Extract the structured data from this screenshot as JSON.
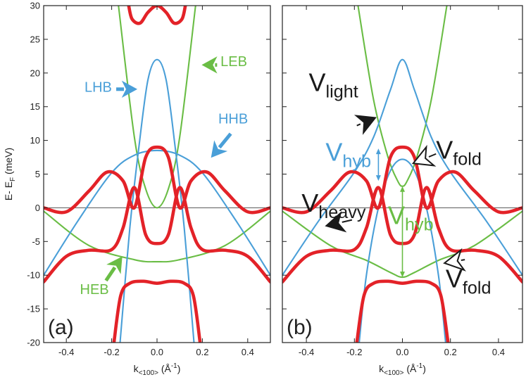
{
  "chart_data": [
    {
      "id": "a",
      "type": "line",
      "panel_label": "(a)",
      "xlabel": "k",
      "xlabel_sub": "<100>",
      "xlabel_unit": " (Å",
      "xlabel_unit_sup": "-1",
      "xlabel_unit_close": ")",
      "ylabel": "E- E",
      "ylabel_sub": "F",
      "ylabel_unit": " (meV)",
      "xlim": [
        -0.5,
        0.5
      ],
      "ylim": [
        -20,
        30
      ],
      "xticks": [
        -0.4,
        -0.2,
        0.0,
        0.2,
        0.4
      ],
      "xtick_labels": [
        "-0.4",
        "-0.2",
        "0.0",
        "0.2",
        "0.4"
      ],
      "yticks": [
        -20,
        -15,
        -10,
        -5,
        0,
        5,
        10,
        15,
        20,
        25,
        30
      ],
      "ytick_labels": [
        "-20",
        "-15",
        "-10",
        "-5",
        "0",
        "5",
        "10",
        "15",
        "20",
        "25",
        "30"
      ],
      "zero_line": true,
      "colors": {
        "blue": "#4a9fd8",
        "green": "#6abd45",
        "red": "#e32228",
        "black": "#1a1a1a"
      },
      "series": [
        {
          "color": "green",
          "x": [
            -0.17,
            -0.1,
            -0.05,
            0.0,
            0.05,
            0.1,
            0.17
          ],
          "y": [
            30.0,
            10.5,
            2.8,
            0.0,
            2.8,
            10.5,
            30.0
          ]
        },
        {
          "color": "green",
          "x": [
            -0.5,
            -0.3,
            -0.1,
            0.0,
            0.1,
            0.3,
            0.5
          ],
          "y": [
            -0.5,
            -5.6,
            -7.7,
            -8.0,
            -7.7,
            -5.6,
            -0.5
          ]
        },
        {
          "color": "blue",
          "x": [
            -0.5,
            -0.35,
            -0.2,
            -0.1,
            0.0,
            0.1,
            0.2,
            0.35,
            0.5
          ],
          "y": [
            -10.0,
            -2.0,
            5.2,
            7.8,
            8.5,
            7.8,
            5.2,
            -2.0,
            -10.0
          ]
        },
        {
          "color": "blue",
          "x": [
            -0.163,
            -0.12,
            -0.08,
            -0.04,
            0.0,
            0.04,
            0.08,
            0.12,
            0.163
          ],
          "y": [
            -20.0,
            -3.0,
            9.0,
            19.0,
            22.0,
            19.0,
            9.0,
            -3.0,
            -20.0
          ]
        },
        {
          "color": "red",
          "x": [
            -0.5,
            -0.4,
            -0.3,
            -0.22,
            -0.15,
            -0.1,
            -0.05,
            0.0,
            0.05,
            0.1,
            0.15,
            0.22,
            0.3,
            0.4,
            0.5
          ],
          "y": [
            0.0,
            -0.6,
            2.5,
            5.3,
            4.0,
            0.0,
            7.5,
            9.0,
            7.5,
            0.0,
            4.0,
            5.3,
            2.5,
            -0.6,
            0.0
          ]
        },
        {
          "color": "red",
          "x": [
            -0.5,
            -0.4,
            -0.3,
            -0.2,
            -0.15,
            -0.1,
            -0.05,
            0.0,
            0.05,
            0.1,
            0.15,
            0.2,
            0.3,
            0.4,
            0.5
          ],
          "y": [
            -11.0,
            -7.2,
            -6.3,
            -6.2,
            -3.0,
            3.0,
            -4.0,
            -5.3,
            -4.0,
            3.0,
            -3.0,
            -6.2,
            -6.3,
            -7.2,
            -11.0
          ]
        },
        {
          "color": "red",
          "x": [
            -0.19,
            -0.16,
            -0.12,
            -0.06,
            0.0,
            0.06,
            0.12,
            0.16,
            0.19
          ],
          "y": [
            -20.0,
            -13.0,
            -11.2,
            -10.9,
            -11.2,
            -10.9,
            -11.2,
            -13.0,
            -20.0
          ]
        },
        {
          "color": "red",
          "x": [
            -0.125,
            -0.11,
            -0.075,
            -0.04,
            0.0,
            0.04,
            0.075,
            0.11,
            0.125
          ],
          "y": [
            30.0,
            28.0,
            27.4,
            29.0,
            30.0,
            29.0,
            27.4,
            28.0,
            30.0
          ]
        }
      ],
      "annotations": [
        {
          "text": "LEB",
          "color": "green",
          "size": 20,
          "x": 0.28,
          "y": 21.0,
          "arrow": {
            "from": [
              0.265,
              21.2
            ],
            "to": [
              0.2,
              21.2
            ],
            "color": "green"
          }
        },
        {
          "text": "LHB",
          "color": "blue",
          "size": 20,
          "x": -0.32,
          "y": 17.2,
          "arrow": {
            "from": [
              -0.18,
              17.6
            ],
            "to": [
              -0.09,
              17.6
            ],
            "color": "blue"
          }
        },
        {
          "text": "HHB",
          "color": "blue",
          "size": 20,
          "x": 0.27,
          "y": 12.5,
          "arrow": {
            "from": [
              0.325,
              11.0
            ],
            "to": [
              0.24,
              7.5
            ],
            "color": "blue"
          }
        },
        {
          "text": "HEB",
          "color": "green",
          "size": 20,
          "x": -0.34,
          "y": -12.8,
          "arrow": {
            "from": [
              -0.225,
              -10.8
            ],
            "to": [
              -0.155,
              -7.3
            ],
            "color": "green"
          }
        }
      ]
    },
    {
      "id": "b",
      "type": "line",
      "panel_label": "(b)",
      "xlabel": "k",
      "xlabel_sub": "<100>",
      "xlabel_unit": " (Å",
      "xlabel_unit_sup": "-1",
      "xlabel_unit_close": ")",
      "xlim": [
        -0.5,
        0.5
      ],
      "ylim": [
        -20,
        30
      ],
      "xticks": [
        -0.4,
        -0.2,
        0.0,
        0.2,
        0.4
      ],
      "xtick_labels": [
        "-0.4",
        "-0.2",
        "0.0",
        "0.2",
        "0.4"
      ],
      "yticks": [
        -20,
        -15,
        -10,
        -5,
        0,
        5,
        10,
        15,
        20,
        25,
        30
      ],
      "zero_line": true,
      "colors": {
        "blue": "#4a9fd8",
        "green": "#6abd45",
        "red": "#e32228",
        "black": "#1a1a1a"
      },
      "series": [
        {
          "color": "green",
          "x": [
            -0.185,
            -0.12,
            -0.06,
            -0.02,
            0.0,
            0.02,
            0.06,
            0.12,
            0.185
          ],
          "y": [
            30.0,
            16.0,
            7.5,
            4.0,
            3.2,
            4.0,
            7.5,
            16.0,
            30.0
          ]
        },
        {
          "color": "green",
          "x": [
            -0.5,
            -0.3,
            -0.15,
            -0.05,
            0.0,
            0.05,
            0.15,
            0.3,
            0.5
          ],
          "y": [
            -0.5,
            -5.6,
            -7.8,
            -9.6,
            -10.3,
            -9.6,
            -7.8,
            -5.6,
            -0.5
          ]
        },
        {
          "color": "blue",
          "x": [
            -0.5,
            -0.35,
            -0.2,
            -0.12,
            -0.05,
            0.0,
            0.05,
            0.12,
            0.2,
            0.35,
            0.5
          ],
          "y": [
            -10.0,
            -2.0,
            5.3,
            10.5,
            17.5,
            22.0,
            17.5,
            10.5,
            5.3,
            -2.0,
            -10.0
          ]
        },
        {
          "color": "blue",
          "x": [
            -0.18,
            -0.15,
            -0.1,
            -0.05,
            0.0,
            0.05,
            0.1,
            0.15,
            0.18
          ],
          "y": [
            -20.0,
            -10.0,
            0.0,
            5.5,
            7.2,
            5.5,
            0.0,
            -10.0,
            -20.0
          ]
        },
        {
          "color": "red",
          "x": [
            -0.5,
            -0.4,
            -0.3,
            -0.22,
            -0.15,
            -0.1,
            -0.05,
            0.0,
            0.05,
            0.1,
            0.15,
            0.22,
            0.3,
            0.4,
            0.5
          ],
          "y": [
            0.0,
            -0.6,
            2.5,
            5.3,
            4.0,
            0.0,
            7.5,
            9.0,
            7.5,
            0.0,
            4.0,
            5.3,
            2.5,
            -0.6,
            0.0
          ]
        },
        {
          "color": "red",
          "x": [
            -0.5,
            -0.4,
            -0.3,
            -0.2,
            -0.15,
            -0.1,
            -0.05,
            0.0,
            0.05,
            0.1,
            0.15,
            0.2,
            0.3,
            0.4,
            0.5
          ],
          "y": [
            -11.0,
            -7.2,
            -6.3,
            -6.2,
            -3.0,
            3.0,
            -4.0,
            -5.3,
            -4.0,
            3.0,
            -3.0,
            -6.2,
            -6.3,
            -7.2,
            -11.0
          ]
        },
        {
          "color": "red",
          "x": [
            -0.19,
            -0.16,
            -0.12,
            -0.06,
            0.0,
            0.06,
            0.12,
            0.16,
            0.19
          ],
          "y": [
            -20.0,
            -13.0,
            -11.2,
            -10.9,
            -11.2,
            -10.9,
            -11.2,
            -13.0,
            -20.0
          ]
        }
      ],
      "annotations": [
        {
          "text": "V",
          "sub": "light",
          "color": "black",
          "size": 36,
          "x": -0.39,
          "y": 17.3,
          "arrow": {
            "from": [
              -0.19,
              12.2
            ],
            "to": [
              -0.11,
              13.4
            ],
            "color": "black",
            "fill": "solid"
          }
        },
        {
          "text": "V",
          "sub": "hyb",
          "color": "blue",
          "size": 36,
          "x": -0.32,
          "y": 7.0
        },
        {
          "text": "V",
          "sub": "fold",
          "color": "black",
          "size": 36,
          "x": 0.14,
          "y": 7.3,
          "arrow": {
            "from": [
              0.14,
              8.0
            ],
            "to": [
              0.045,
              6.6
            ],
            "color": "black",
            "fill": "open"
          }
        },
        {
          "text": "V",
          "sub": "heavy",
          "color": "black",
          "size": 36,
          "x": -0.42,
          "y": -0.6,
          "arrow": {
            "from": [
              -0.21,
              -1.8
            ],
            "to": [
              -0.32,
              -2.7
            ],
            "color": "black",
            "fill": "solid"
          }
        },
        {
          "text": "V",
          "sub": "hyb",
          "color": "green",
          "size": 36,
          "x": -0.06,
          "y": -2.4
        },
        {
          "text": "V",
          "sub": "fold",
          "color": "black",
          "size": 36,
          "x": 0.18,
          "y": -11.8,
          "arrow": {
            "from": [
              0.26,
              -7.7
            ],
            "to": [
              0.175,
              -8.2
            ],
            "color": "black",
            "fill": "open"
          }
        }
      ],
      "double_arrows": [
        {
          "x": -0.1,
          "y1": 8.8,
          "y2": 4.0,
          "color": "blue"
        },
        {
          "x": 0.0,
          "y1": 3.2,
          "y2": -10.3,
          "color": "green"
        }
      ]
    }
  ]
}
